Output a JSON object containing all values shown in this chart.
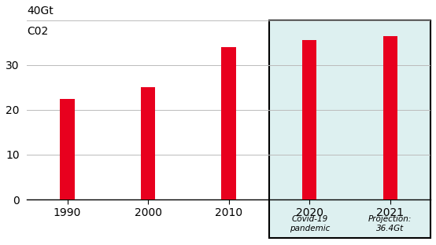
{
  "categories": [
    "1990",
    "2000",
    "2010",
    "2020",
    "2021"
  ],
  "values": [
    22.5,
    25.0,
    34.0,
    35.5,
    36.4
  ],
  "bar_color": "#e8001e",
  "highlight_bg_color": "#ddf0f0",
  "ylim": [
    0,
    40
  ],
  "yticks": [
    0,
    10,
    20,
    30,
    40
  ],
  "ylabel_line1": "40Gt",
  "ylabel_line2": "C02",
  "grid_color": "#bbbbbb",
  "annotation_2020": "Covid-19\npandemic",
  "annotation_2021": "Projection:\n36.4Gt",
  "annotation_fontsize": 7.5,
  "bar_width": 0.18,
  "tick_fontsize": 10,
  "background_color": "#ffffff"
}
